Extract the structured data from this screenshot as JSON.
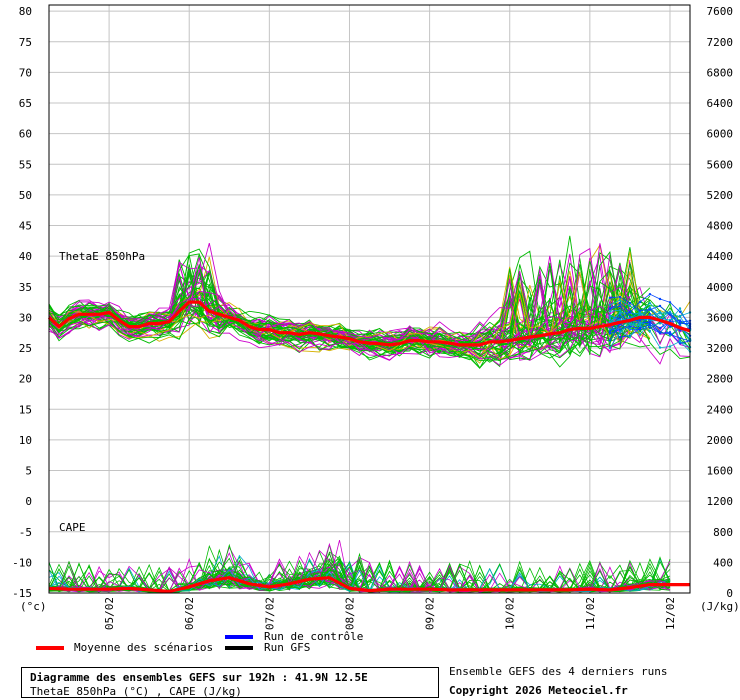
{
  "chart_data": {
    "type": "line",
    "left_axis": {
      "unit": "(°c)",
      "ticks": [
        -15,
        -10,
        -5,
        0,
        5,
        10,
        15,
        20,
        25,
        30,
        35,
        40,
        45,
        50,
        55,
        60,
        65,
        70,
        75,
        80
      ],
      "ylim": [
        -15,
        81
      ]
    },
    "right_axis": {
      "unit": "(J/kg)",
      "ticks": [
        0,
        400,
        800,
        1200,
        1600,
        2000,
        2400,
        2800,
        3200,
        3600,
        4000,
        4400,
        4800,
        5200,
        5600,
        6000,
        6400,
        6800,
        7200,
        7600
      ]
    },
    "x_axis": {
      "range_hours": [
        0,
        192
      ],
      "tick_labels": [
        "05/02",
        "06/02",
        "07/02",
        "08/02",
        "09/02",
        "10/02",
        "11/02",
        "12/02"
      ],
      "tick_hours": [
        18,
        42,
        66,
        90,
        114,
        138,
        162,
        186
      ]
    },
    "grid": true,
    "panel_labels": {
      "thetae": "ThetaE 850hPa",
      "cape": "CAPE"
    },
    "legend": [
      {
        "label": "Moyenne des scénarios",
        "color": "#ff0000"
      },
      {
        "label": "Run de contrôle",
        "color": "#0000ff"
      },
      {
        "label": "Run GFS",
        "color": "#000000"
      }
    ],
    "ensemble_colors": [
      "#00bb00",
      "#cc00cc",
      "#d6b000",
      "#00aacc",
      "#0044ff"
    ],
    "thetae_mean": {
      "hours": [
        0,
        3,
        6,
        9,
        12,
        15,
        18,
        21,
        24,
        27,
        30,
        33,
        36,
        39,
        42,
        45,
        48,
        51,
        54,
        57,
        60,
        63,
        66,
        69,
        72,
        75,
        78,
        81,
        84,
        87,
        90,
        93,
        96,
        99,
        102,
        105,
        108,
        111,
        114,
        117,
        120,
        123,
        126,
        129,
        132,
        135,
        138,
        141,
        144,
        147,
        150,
        153,
        156,
        159,
        162,
        165,
        168,
        171,
        174,
        177,
        180,
        183,
        186,
        189,
        192
      ],
      "values": [
        30,
        28.5,
        29.8,
        30.5,
        30.5,
        30.5,
        30.8,
        29.5,
        28.5,
        28.5,
        29,
        29,
        29.3,
        31,
        32.5,
        32.5,
        31,
        30.5,
        30,
        29.5,
        28.5,
        28,
        28,
        27.5,
        27.5,
        27.2,
        27.5,
        27.3,
        27,
        26.8,
        26.5,
        26,
        25.8,
        25.7,
        25.5,
        25.7,
        26.2,
        26.2,
        26,
        26,
        25.8,
        25.5,
        25.5,
        25.5,
        26,
        26,
        26.2,
        26.5,
        26.8,
        27,
        27.3,
        27.5,
        28,
        28.2,
        28.2,
        28.5,
        28.8,
        29.2,
        29.5,
        30,
        30,
        29.5,
        29,
        28.3,
        27.8
      ]
    },
    "cape_mean": {
      "hours": [
        0,
        6,
        12,
        18,
        24,
        30,
        36,
        42,
        48,
        54,
        60,
        66,
        72,
        78,
        84,
        90,
        96,
        102,
        108,
        114,
        120,
        126,
        132,
        138,
        144,
        150,
        156,
        162,
        168,
        174,
        180,
        186,
        192
      ],
      "values": [
        60,
        50,
        50,
        50,
        60,
        40,
        20,
        80,
        160,
        200,
        120,
        80,
        120,
        180,
        200,
        60,
        30,
        50,
        50,
        50,
        40,
        40,
        40,
        40,
        40,
        40,
        40,
        50,
        40,
        70,
        110,
        110,
        110
      ]
    }
  },
  "caption": {
    "title": "Diagramme des ensembles GEFS sur 192h : 41.9N 12.5E",
    "subtitle": "ThetaE 850hPa (°C) , CAPE (J/kg)"
  },
  "side_note": "Ensemble GEFS des 4 derniers runs",
  "copyright": "Copyright 2026 Meteociel.fr"
}
